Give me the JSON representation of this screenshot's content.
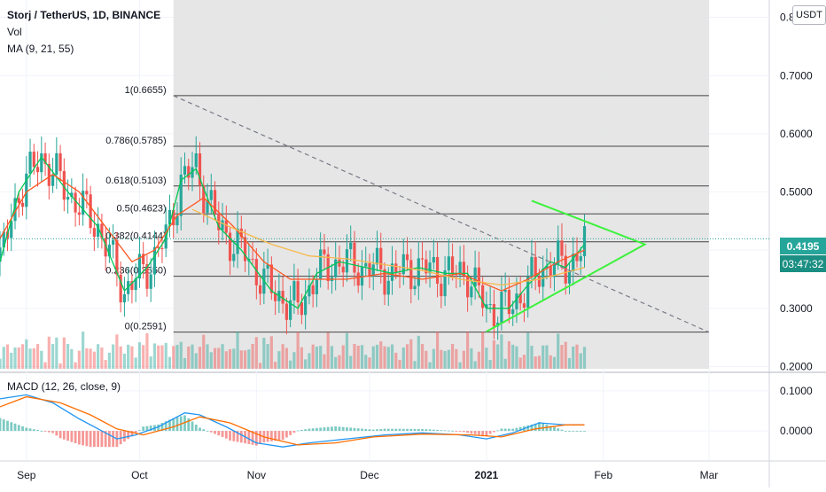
{
  "header": {
    "symbol_line": "Storj / TetherUS, 1D, BINANCE",
    "volume_label": "Vol",
    "ma_label": "MA (9, 21, 55)",
    "macd_label": "MACD (12, 26, close, 9)"
  },
  "price_scale": {
    "unit_button": "USDT"
  },
  "last_price": {
    "value": "0.4195",
    "countdown": "03:47:32"
  },
  "colors": {
    "up": "#26a69a",
    "down": "#ef5350",
    "ma9": "#00c853",
    "ma21": "#ff5722",
    "ma55": "#f7b84b",
    "triangle": "#3cf23c",
    "fib_zone": "#e2e2e2",
    "macd_line": "#2196f3",
    "signal_line": "#ff6d00"
  },
  "chart_data": [
    {
      "type": "candlestick",
      "title": "Storj / TetherUS, 1D, BINANCE",
      "y_axis": {
        "ticks": [
          "0.2000",
          "0.3000",
          "0.4000",
          "0.5000",
          "0.6000",
          "0.7000",
          "0.8000"
        ],
        "ylim": [
          0.196,
          0.83
        ]
      },
      "x_axis": {
        "ticks": [
          {
            "label": "Sep",
            "date": "2020-09-01"
          },
          {
            "label": "Oct",
            "date": "2020-10-01"
          },
          {
            "label": "Nov",
            "date": "2020-11-01"
          },
          {
            "label": "Dec",
            "date": "2020-12-01"
          },
          {
            "label": "2021",
            "date": "2021-01-01"
          },
          {
            "label": "Feb",
            "date": "2021-02-01"
          },
          {
            "label": "Mar",
            "date": "2021-03-01"
          }
        ],
        "xlim": [
          "2020-08-25",
          "2021-03-17"
        ]
      },
      "fib_retracement": {
        "start_date": "2020-10-10",
        "end_date": "2021-03-01",
        "levels": [
          {
            "label": "1(0.6655)",
            "value": 0.6655
          },
          {
            "label": "0.786(0.5785)",
            "value": 0.5785
          },
          {
            "label": "0.618(0.5103)",
            "value": 0.5103
          },
          {
            "label": "0.5(0.4623)",
            "value": 0.4623
          },
          {
            "label": "0.382(0.4144)",
            "value": 0.4144
          },
          {
            "label": "0.236(0.3550)",
            "value": 0.355
          },
          {
            "label": "0(0.2591)",
            "value": 0.2591
          }
        ]
      },
      "trendline": {
        "from": {
          "date": "2020-10-10",
          "price": 0.6655
        },
        "to": {
          "date": "2021-03-01",
          "price": 0.259
        }
      },
      "triangle": [
        {
          "date": "2021-01-13",
          "price": 0.485
        },
        {
          "date": "2021-02-12",
          "price": 0.41
        },
        {
          "date": "2021-01-01",
          "price": 0.26
        }
      ],
      "last_price": 0.4195,
      "series": [
        {
          "name": "MA 9",
          "points": [
            [
              "2020-08-25",
              0.38
            ],
            [
              "2020-08-30",
              0.5
            ],
            [
              "2020-09-05",
              0.56
            ],
            [
              "2020-09-12",
              0.5
            ],
            [
              "2020-09-20",
              0.44
            ],
            [
              "2020-09-27",
              0.33
            ],
            [
              "2020-10-03",
              0.37
            ],
            [
              "2020-10-08",
              0.42
            ],
            [
              "2020-10-12",
              0.52
            ],
            [
              "2020-10-16",
              0.54
            ],
            [
              "2020-10-22",
              0.44
            ],
            [
              "2020-10-28",
              0.4
            ],
            [
              "2020-11-05",
              0.33
            ],
            [
              "2020-11-12",
              0.3
            ],
            [
              "2020-11-17",
              0.36
            ],
            [
              "2020-11-23",
              0.38
            ],
            [
              "2020-11-30",
              0.37
            ],
            [
              "2020-12-07",
              0.36
            ],
            [
              "2020-12-14",
              0.37
            ],
            [
              "2020-12-21",
              0.36
            ],
            [
              "2020-12-27",
              0.36
            ],
            [
              "2021-01-01",
              0.3
            ],
            [
              "2021-01-07",
              0.3
            ],
            [
              "2021-01-12",
              0.34
            ],
            [
              "2021-01-18",
              0.38
            ],
            [
              "2021-01-22",
              0.37
            ],
            [
              "2021-01-27",
              0.41
            ]
          ]
        },
        {
          "name": "MA 21",
          "points": [
            [
              "2020-08-25",
              0.42
            ],
            [
              "2020-09-01",
              0.5
            ],
            [
              "2020-09-08",
              0.53
            ],
            [
              "2020-09-15",
              0.5
            ],
            [
              "2020-09-22",
              0.44
            ],
            [
              "2020-09-29",
              0.38
            ],
            [
              "2020-10-05",
              0.4
            ],
            [
              "2020-10-11",
              0.46
            ],
            [
              "2020-10-18",
              0.49
            ],
            [
              "2020-10-26",
              0.44
            ],
            [
              "2020-11-03",
              0.38
            ],
            [
              "2020-11-10",
              0.35
            ],
            [
              "2020-11-17",
              0.35
            ],
            [
              "2020-11-25",
              0.35
            ],
            [
              "2020-12-05",
              0.36
            ],
            [
              "2020-12-15",
              0.35
            ],
            [
              "2020-12-25",
              0.36
            ],
            [
              "2021-01-05",
              0.33
            ],
            [
              "2021-01-12",
              0.35
            ],
            [
              "2021-01-20",
              0.38
            ],
            [
              "2021-01-27",
              0.4
            ]
          ]
        },
        {
          "name": "MA 55",
          "points": [
            [
              "2020-10-15",
              0.47
            ],
            [
              "2020-10-25",
              0.44
            ],
            [
              "2020-11-05",
              0.41
            ],
            [
              "2020-11-15",
              0.39
            ],
            [
              "2020-11-25",
              0.385
            ],
            [
              "2020-12-05",
              0.375
            ],
            [
              "2020-12-15",
              0.365
            ],
            [
              "2020-12-25",
              0.35
            ],
            [
              "2021-01-05",
              0.34
            ],
            [
              "2021-01-15",
              0.35
            ],
            [
              "2021-01-27",
              0.37
            ]
          ]
        }
      ]
    },
    {
      "type": "line",
      "title": "MACD (12, 26, close, 9)",
      "y_axis": {
        "ticks": [
          "0.0000",
          "0.1000"
        ],
        "ylim": [
          -0.075,
          0.135
        ]
      },
      "series": [
        {
          "name": "MACD",
          "points": [
            [
              "2020-08-25",
              0.08
            ],
            [
              "2020-09-01",
              0.09
            ],
            [
              "2020-09-08",
              0.07
            ],
            [
              "2020-09-15",
              0.03
            ],
            [
              "2020-09-21",
              0.0
            ],
            [
              "2020-09-25",
              -0.02
            ],
            [
              "2020-09-30",
              -0.01
            ],
            [
              "2020-10-06",
              0.01
            ],
            [
              "2020-10-13",
              0.045
            ],
            [
              "2020-10-17",
              0.04
            ],
            [
              "2020-10-24",
              0.01
            ],
            [
              "2020-11-01",
              -0.03
            ],
            [
              "2020-11-08",
              -0.04
            ],
            [
              "2020-11-15",
              -0.03
            ],
            [
              "2020-11-25",
              -0.02
            ],
            [
              "2020-12-05",
              -0.01
            ],
            [
              "2020-12-15",
              -0.005
            ],
            [
              "2020-12-25",
              -0.01
            ],
            [
              "2021-01-01",
              -0.02
            ],
            [
              "2021-01-08",
              -0.005
            ],
            [
              "2021-01-15",
              0.02
            ],
            [
              "2021-01-22",
              0.015
            ],
            [
              "2021-01-27",
              0.015
            ]
          ]
        },
        {
          "name": "Signal",
          "points": [
            [
              "2020-08-25",
              0.06
            ],
            [
              "2020-09-01",
              0.085
            ],
            [
              "2020-09-10",
              0.07
            ],
            [
              "2020-09-18",
              0.04
            ],
            [
              "2020-09-25",
              0.005
            ],
            [
              "2020-10-02",
              -0.01
            ],
            [
              "2020-10-10",
              0.01
            ],
            [
              "2020-10-17",
              0.035
            ],
            [
              "2020-10-25",
              0.02
            ],
            [
              "2020-11-03",
              -0.015
            ],
            [
              "2020-11-12",
              -0.035
            ],
            [
              "2020-11-22",
              -0.03
            ],
            [
              "2020-12-02",
              -0.015
            ],
            [
              "2020-12-15",
              -0.008
            ],
            [
              "2020-12-28",
              -0.01
            ],
            [
              "2021-01-05",
              -0.015
            ],
            [
              "2021-01-14",
              0.005
            ],
            [
              "2021-01-22",
              0.015
            ],
            [
              "2021-01-27",
              0.015
            ]
          ]
        }
      ]
    }
  ]
}
